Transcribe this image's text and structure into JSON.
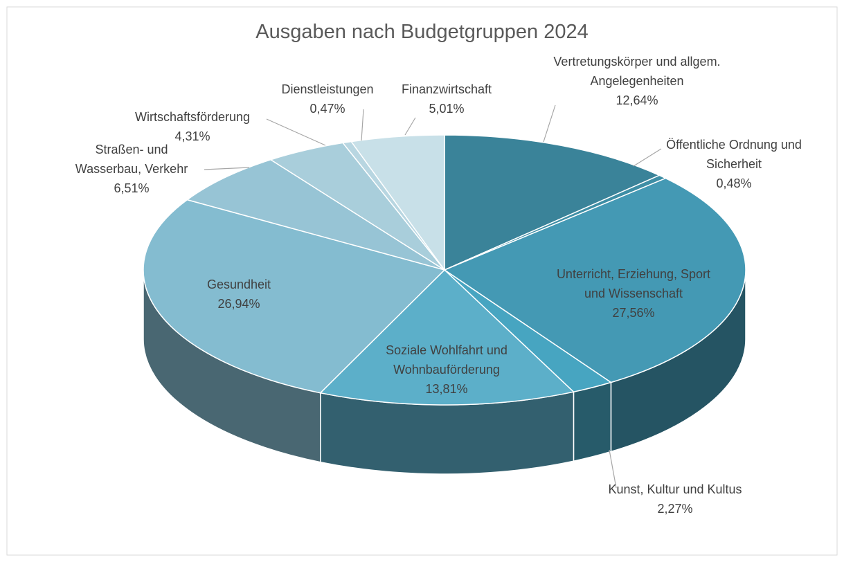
{
  "chart_data": {
    "type": "pie3d",
    "title": "Ausgaben nach Budgetgruppen 2024",
    "categories": [
      "Vertretungskörper und allgem. Angelegenheiten",
      "Öffentliche Ordnung und Sicherheit",
      "Unterricht, Erziehung, Sport und Wissenschaft",
      "Kunst, Kultur und Kultus",
      "Soziale Wohlfahrt und Wohnbauförderung",
      "Gesundheit",
      "Straßen- und Wasserbau, Verkehr",
      "Wirtschaftsförderung",
      "Dienstleistungen",
      "Finanzwirtschaft"
    ],
    "values": [
      12.64,
      0.48,
      27.56,
      2.27,
      13.81,
      26.94,
      6.51,
      4.31,
      0.47,
      5.01
    ],
    "value_labels": [
      "12,64%",
      "0,48%",
      "27,56%",
      "2,27%",
      "13,81%",
      "26,94%",
      "6,51%",
      "4,31%",
      "0,47%",
      "5,01%"
    ],
    "colors": [
      "#3a8399",
      "#3e8ea5",
      "#4499b4",
      "#47a5c1",
      "#5cafc9",
      "#84bcd0",
      "#97c4d5",
      "#a9cedb",
      "#b8d6e1",
      "#c8e0e8"
    ]
  }
}
